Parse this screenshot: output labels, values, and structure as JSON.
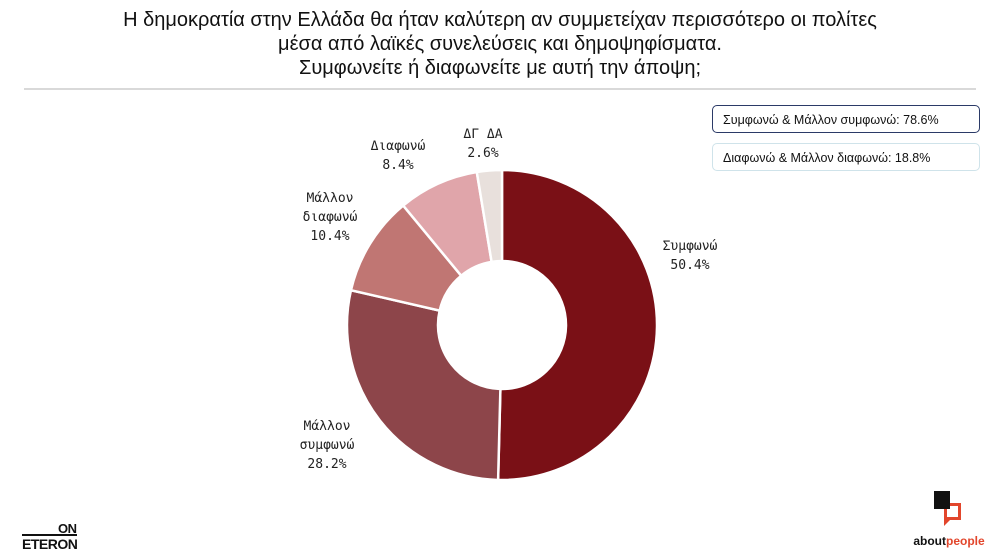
{
  "title_lines": [
    "Η δημοκρατία στην Ελλάδα θα ήταν καλύτερη αν συμμετείχαν περισσότερο οι πολίτες",
    "μέσα από λαϊκές συνελεύσεις και δημοψηφίσματα.",
    "Συμφωνείτε ή διαφωνείτε με αυτή την άποψη;"
  ],
  "summary": {
    "agree_total": "Συμφωνώ & Μάλλον συμφωνώ: 78.6%",
    "disagree_total": "Διαφωνώ & Μάλλον διαφωνώ: 18.8%"
  },
  "chart_data": {
    "type": "pie",
    "donut": true,
    "title": "",
    "slices": [
      {
        "label": [
          "Συμφωνώ"
        ],
        "value": 50.4,
        "value_label": "50.4%",
        "color": "#7a1016"
      },
      {
        "label": [
          "Μάλλον",
          "συμφωνώ"
        ],
        "value": 28.2,
        "value_label": "28.2%",
        "color": "#8d454a"
      },
      {
        "label": [
          "Μάλλον",
          "διαφωνώ"
        ],
        "value": 10.4,
        "value_label": "10.4%",
        "color": "#c07673"
      },
      {
        "label": [
          "Διαφωνώ"
        ],
        "value": 8.4,
        "value_label": "8.4%",
        "color": "#e0a5aa"
      },
      {
        "label": [
          "ΔΓ ΔΑ"
        ],
        "value": 2.6,
        "value_label": "2.6%",
        "color": "#e8e0dc"
      }
    ]
  },
  "logos": {
    "left_top": "ON",
    "left_bottom": "ETERON",
    "right_name_a": "about",
    "right_name_b": "people"
  }
}
